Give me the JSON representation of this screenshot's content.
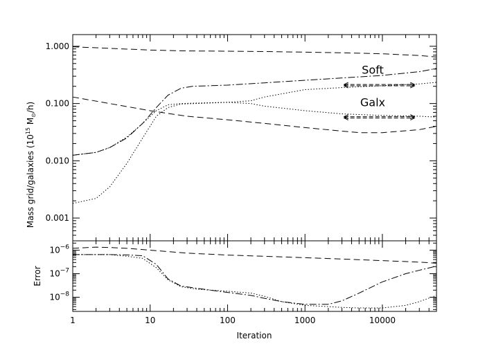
{
  "chart_data": [
    {
      "type": "line",
      "panel": "top",
      "xscale": "log",
      "yscale": "log",
      "xlim": [
        1,
        50000
      ],
      "ylim": [
        0.0004,
        1.6
      ],
      "ylabel_parts": [
        "Mass grid/galaxies (10",
        "15",
        " M",
        "⊙",
        "/h)"
      ],
      "yticks": [
        {
          "value": 0.001,
          "label": "0.001"
        },
        {
          "value": 0.01,
          "label": "0.010"
        },
        {
          "value": 0.1,
          "label": "0.100"
        },
        {
          "value": 1,
          "label": "1.000"
        }
      ],
      "annotations": [
        {
          "text": "Soft",
          "x": 7500,
          "y": 0.33
        },
        {
          "text": "Galx",
          "x": 7500,
          "y": 0.09
        }
      ],
      "series": [
        {
          "style": "dash",
          "x": [
            1,
            3,
            10,
            30,
            100,
            300,
            1000,
            3000,
            10000,
            30000,
            50000
          ],
          "y": [
            0.98,
            0.92,
            0.86,
            0.83,
            0.82,
            0.81,
            0.79,
            0.77,
            0.74,
            0.69,
            0.65
          ]
        },
        {
          "style": "dash",
          "x": [
            1,
            3,
            10,
            20,
            30,
            100,
            300,
            1000,
            3000,
            5000,
            10000,
            30000,
            50000
          ],
          "y": [
            0.13,
            0.1,
            0.075,
            0.065,
            0.06,
            0.052,
            0.045,
            0.038,
            0.033,
            0.031,
            0.031,
            0.035,
            0.04
          ]
        },
        {
          "style": "dashdot",
          "x": [
            1,
            2,
            3,
            5,
            8,
            12,
            17,
            25,
            35,
            60,
            100,
            300,
            1000,
            3000,
            10000,
            30000,
            50000
          ],
          "y": [
            0.0125,
            0.014,
            0.017,
            0.025,
            0.045,
            0.085,
            0.14,
            0.185,
            0.2,
            0.205,
            0.21,
            0.23,
            0.255,
            0.28,
            0.31,
            0.36,
            0.41
          ]
        },
        {
          "style": "dot",
          "x": [
            1,
            2,
            3,
            5,
            8,
            12,
            17,
            25,
            40,
            100,
            200,
            300,
            1000,
            3000,
            10000,
            30000,
            50000
          ],
          "y": [
            0.0018,
            0.0022,
            0.0035,
            0.009,
            0.025,
            0.06,
            0.085,
            0.098,
            0.1,
            0.105,
            0.112,
            0.13,
            0.175,
            0.19,
            0.205,
            0.22,
            0.235
          ]
        },
        {
          "style": "dot",
          "x": [
            1,
            2,
            3,
            5,
            8,
            12,
            17,
            25,
            40,
            100,
            200,
            300,
            1000,
            3000,
            10000,
            30000,
            50000
          ],
          "y": [
            0.0125,
            0.014,
            0.017,
            0.026,
            0.045,
            0.075,
            0.095,
            0.1,
            0.102,
            0.105,
            0.1,
            0.09,
            0.075,
            0.066,
            0.062,
            0.06,
            0.058
          ]
        },
        {
          "style": "arrow",
          "x": [
            3200,
            26000
          ],
          "y": [
            0.215,
            0.215
          ]
        },
        {
          "style": "arrow",
          "x": [
            3200,
            26000
          ],
          "y": [
            0.204,
            0.204
          ]
        },
        {
          "style": "arrow",
          "x": [
            3200,
            26000
          ],
          "y": [
            0.059,
            0.059
          ]
        },
        {
          "style": "arrow",
          "x": [
            3200,
            26000
          ],
          "y": [
            0.056,
            0.056
          ]
        }
      ]
    },
    {
      "type": "line",
      "panel": "bottom",
      "xscale": "log",
      "yscale": "log",
      "xlim": [
        1,
        50000
      ],
      "ylim": [
        2.5e-09,
        2.5e-06
      ],
      "xlabel": "Iteration",
      "ylabel": "Error",
      "xticks": [
        {
          "value": 1,
          "label": "1"
        },
        {
          "value": 10,
          "label": "10"
        },
        {
          "value": 100,
          "label": "100"
        },
        {
          "value": 1000,
          "label": "1000"
        },
        {
          "value": 10000,
          "label": "10000"
        }
      ],
      "yticks": [
        {
          "value": 1e-08,
          "base": "10",
          "exp": "−8"
        },
        {
          "value": 1e-07,
          "base": "10",
          "exp": "−7"
        },
        {
          "value": 1e-06,
          "base": "10",
          "exp": "−6"
        }
      ],
      "series": [
        {
          "style": "dash",
          "x": [
            1,
            2,
            3,
            5,
            10,
            30,
            100,
            300,
            1000,
            3000,
            10000,
            30000,
            50000
          ],
          "y": [
            1.2e-06,
            1.35e-06,
            1.3e-06,
            1.2e-06,
            1e-06,
            7.5e-07,
            6.2e-07,
            5.5e-07,
            4.8e-07,
            4.2e-07,
            3.6e-07,
            3.1e-07,
            2.8e-07
          ]
        },
        {
          "style": "dashdot",
          "x": [
            1,
            3,
            5,
            8,
            12,
            17,
            25,
            40,
            100,
            200,
            300,
            500,
            1000,
            2000,
            3000,
            5000,
            10000,
            20000,
            30000,
            50000
          ],
          "y": [
            6.5e-07,
            6.5e-07,
            6.3e-07,
            5.8e-07,
            2.5e-07,
            6e-08,
            3e-08,
            2.4e-08,
            1.6e-08,
            1.2e-08,
            9e-09,
            6.5e-09,
            5e-09,
            5e-09,
            7e-09,
            1.5e-08,
            4.5e-08,
            1e-07,
            1.4e-07,
            2.1e-07
          ]
        },
        {
          "style": "dot",
          "x": [
            1,
            3,
            5,
            8,
            12,
            17,
            25,
            40,
            100,
            200,
            300,
            500,
            1000,
            2000,
            3000,
            5000,
            10000,
            20000,
            30000,
            50000
          ],
          "y": [
            6.5e-07,
            6.5e-07,
            5.5e-07,
            4.5e-07,
            1.8e-07,
            5.5e-08,
            2.8e-08,
            2.2e-08,
            1.8e-08,
            1.5e-08,
            1.1e-08,
            6.5e-09,
            4.5e-09,
            4e-09,
            3.7e-09,
            3.5e-09,
            3.5e-09,
            4.5e-09,
            6.5e-09,
            1.2e-08
          ]
        }
      ]
    }
  ]
}
